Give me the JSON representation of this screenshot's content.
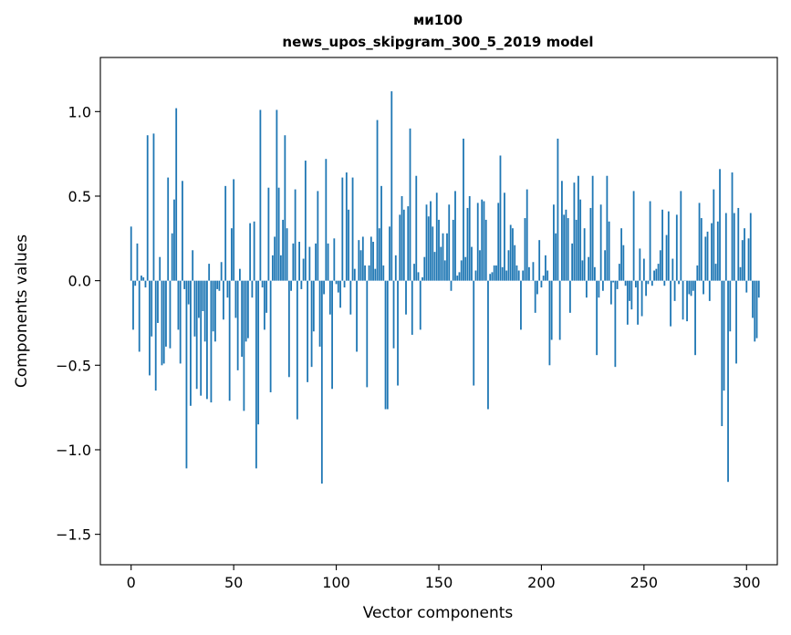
{
  "chart_data": {
    "type": "bar",
    "title_line1": "ми100",
    "title_line2": "news_upos_skipgram_300_5_2019 model",
    "xlabel": "Vector components",
    "ylabel": "Components values",
    "xlim": [
      -15,
      315
    ],
    "ylim": [
      -1.68,
      1.32
    ],
    "x_ticks": [
      0,
      50,
      100,
      150,
      200,
      250,
      300
    ],
    "x_tick_labels": [
      "0",
      "50",
      "100",
      "150",
      "200",
      "250",
      "300"
    ],
    "y_ticks": [
      1.0,
      0.5,
      0.0,
      -0.5,
      -1.0,
      -1.5
    ],
    "y_tick_labels": [
      "1.0",
      "0.5",
      "0.0",
      "−0.5",
      "−1.0",
      "−1.5"
    ],
    "bar_color": "#1f77b4",
    "series": [
      {
        "name": "components",
        "values": [
          0.32,
          -0.29,
          -0.03,
          0.22,
          -0.42,
          0.03,
          0.02,
          -0.04,
          0.86,
          -0.56,
          -0.33,
          0.87,
          -0.65,
          -0.25,
          0.14,
          -0.5,
          -0.49,
          -0.39,
          0.61,
          -0.4,
          0.28,
          0.48,
          1.02,
          -0.29,
          -0.49,
          0.59,
          -0.05,
          -1.11,
          -0.14,
          -0.74,
          0.18,
          -0.33,
          -0.64,
          -0.22,
          -0.68,
          -0.18,
          -0.36,
          -0.7,
          0.1,
          -0.72,
          -0.3,
          -0.36,
          -0.05,
          -0.06,
          0.11,
          -0.23,
          0.56,
          -0.1,
          -0.71,
          0.31,
          0.6,
          -0.22,
          -0.53,
          0.07,
          -0.45,
          -0.77,
          -0.36,
          -0.34,
          0.34,
          -0.1,
          0.35,
          -1.11,
          -0.85,
          1.01,
          -0.04,
          -0.29,
          -0.19,
          0.55,
          -0.66,
          0.15,
          0.26,
          1.01,
          0.55,
          0.15,
          0.36,
          0.86,
          0.31,
          -0.57,
          -0.06,
          0.22,
          0.54,
          -0.82,
          0.23,
          -0.05,
          0.13,
          0.71,
          -0.6,
          0.2,
          -0.51,
          -0.3,
          0.22,
          0.53,
          -0.39,
          -1.2,
          -0.08,
          0.72,
          0.22,
          -0.2,
          -0.64,
          0.25,
          -0.02,
          -0.07,
          -0.16,
          0.61,
          -0.04,
          0.64,
          0.42,
          -0.2,
          0.61,
          0.07,
          -0.42,
          0.24,
          0.18,
          0.26,
          0.09,
          -0.63,
          0.09,
          0.26,
          0.23,
          0.07,
          0.95,
          0.31,
          0.56,
          0.09,
          -0.76,
          -0.76,
          0.32,
          1.12,
          -0.4,
          0.15,
          -0.62,
          0.39,
          0.5,
          0.42,
          -0.2,
          0.44,
          0.9,
          -0.32,
          0.1,
          0.62,
          0.05,
          -0.29,
          0.02,
          0.14,
          0.45,
          0.38,
          0.47,
          0.32,
          0.17,
          0.52,
          0.36,
          0.2,
          0.28,
          0.12,
          0.28,
          0.45,
          -0.06,
          0.36,
          0.53,
          0.03,
          0.05,
          0.12,
          0.84,
          0.14,
          0.43,
          0.5,
          0.2,
          -0.62,
          0.06,
          0.46,
          0.18,
          0.48,
          0.47,
          0.36,
          -0.76,
          0.04,
          0.05,
          0.09,
          0.09,
          0.46,
          0.74,
          0.08,
          0.52,
          0.06,
          0.18,
          0.33,
          0.31,
          0.21,
          0.09,
          0.06,
          -0.29,
          0.06,
          0.37,
          0.54,
          0.08,
          0.0,
          0.11,
          -0.19,
          -0.08,
          0.24,
          -0.04,
          0.03,
          0.15,
          0.06,
          -0.5,
          -0.35,
          0.45,
          0.28,
          0.84,
          -0.35,
          0.59,
          0.39,
          0.42,
          0.37,
          -0.19,
          0.22,
          0.58,
          0.36,
          0.62,
          0.48,
          0.12,
          0.31,
          -0.1,
          0.14,
          0.43,
          0.62,
          0.08,
          -0.44,
          -0.1,
          0.45,
          -0.06,
          0.18,
          0.62,
          0.35,
          -0.14,
          -0.01,
          -0.51,
          -0.05,
          0.1,
          0.31,
          0.21,
          -0.03,
          -0.26,
          -0.12,
          -0.17,
          0.53,
          -0.04,
          -0.26,
          0.19,
          -0.21,
          0.13,
          -0.09,
          -0.02,
          0.47,
          -0.03,
          0.06,
          0.07,
          0.1,
          0.18,
          0.42,
          -0.03,
          0.27,
          0.41,
          -0.27,
          0.13,
          -0.12,
          0.39,
          -0.02,
          0.53,
          -0.23,
          0.0,
          -0.24,
          -0.08,
          -0.09,
          -0.06,
          -0.44,
          0.09,
          0.46,
          0.37,
          -0.08,
          0.26,
          0.29,
          -0.12,
          0.34,
          0.54,
          0.1,
          0.35,
          0.66,
          -0.86,
          -0.65,
          0.4,
          -1.19,
          -0.3,
          0.64,
          0.4,
          -0.49,
          0.43,
          0.08,
          0.24,
          0.31,
          -0.07,
          0.25,
          0.4,
          -0.22,
          -0.36,
          -0.34,
          -0.1
        ]
      }
    ]
  }
}
